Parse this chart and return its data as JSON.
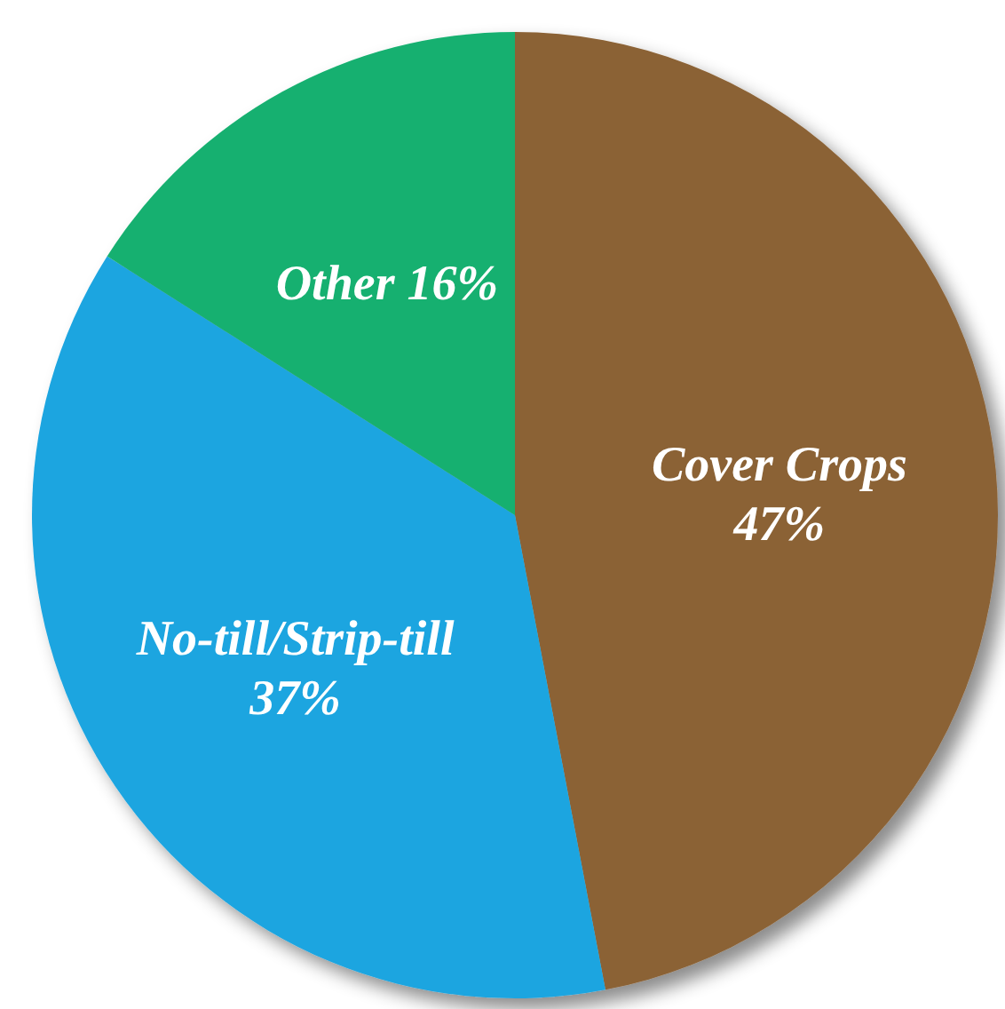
{
  "chart_data": {
    "type": "pie",
    "categories": [
      "Cover Crops",
      "No-till/Strip-till",
      "Other"
    ],
    "values": [
      47,
      37,
      16
    ],
    "value_labels": [
      "47%",
      "37%",
      "16%"
    ],
    "colors": [
      "#8b6236",
      "#1ea5e0",
      "#15b06f"
    ]
  }
}
